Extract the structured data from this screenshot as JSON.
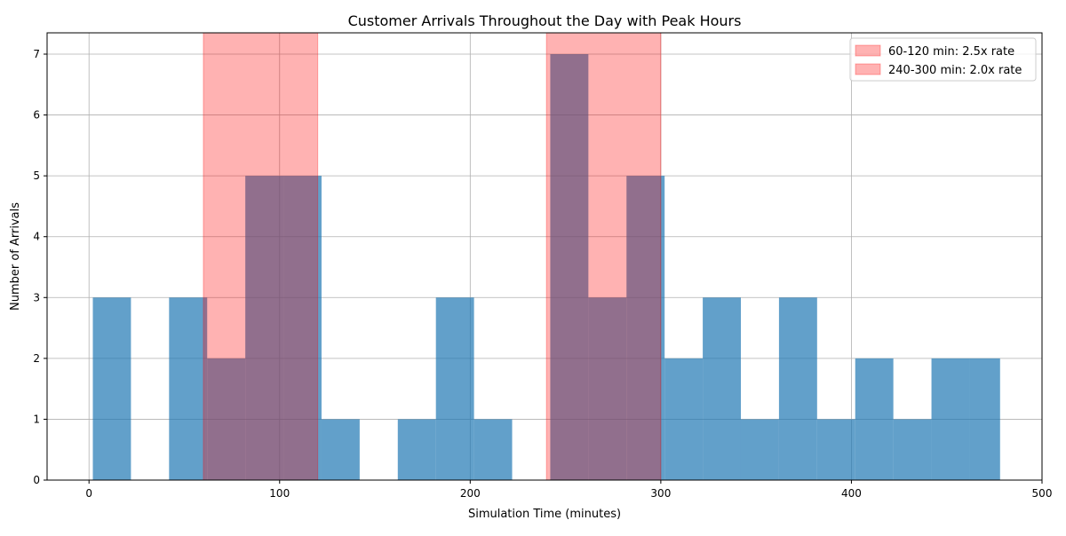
{
  "chart_data": {
    "type": "bar",
    "title": "Customer Arrivals Throughout the Day with Peak Hours",
    "xlabel": "Simulation Time (minutes)",
    "ylabel": "Number of Arrivals",
    "xlim": [
      -22,
      500
    ],
    "ylim": [
      0,
      7.35
    ],
    "xticks": [
      0,
      100,
      200,
      300,
      400,
      500
    ],
    "yticks": [
      0,
      1,
      2,
      3,
      4,
      5,
      6,
      7
    ],
    "grid": true,
    "legend_position": "top-right",
    "bars": [
      {
        "x0": 2,
        "x1": 22,
        "value": 3
      },
      {
        "x0": 22,
        "x1": 42,
        "value": 0
      },
      {
        "x0": 42,
        "x1": 62,
        "value": 3
      },
      {
        "x0": 62,
        "x1": 82,
        "value": 2
      },
      {
        "x0": 82,
        "x1": 102,
        "value": 5
      },
      {
        "x0": 102,
        "x1": 122,
        "value": 5
      },
      {
        "x0": 122,
        "x1": 142,
        "value": 1
      },
      {
        "x0": 142,
        "x1": 162,
        "value": 0
      },
      {
        "x0": 162,
        "x1": 182,
        "value": 1
      },
      {
        "x0": 182,
        "x1": 202,
        "value": 3
      },
      {
        "x0": 202,
        "x1": 222,
        "value": 1
      },
      {
        "x0": 222,
        "x1": 242,
        "value": 0
      },
      {
        "x0": 242,
        "x1": 262,
        "value": 7
      },
      {
        "x0": 262,
        "x1": 282,
        "value": 3
      },
      {
        "x0": 282,
        "x1": 302,
        "value": 5
      },
      {
        "x0": 302,
        "x1": 322,
        "value": 2
      },
      {
        "x0": 322,
        "x1": 342,
        "value": 3
      },
      {
        "x0": 342,
        "x1": 362,
        "value": 1
      },
      {
        "x0": 362,
        "x1": 382,
        "value": 3
      },
      {
        "x0": 382,
        "x1": 402,
        "value": 1
      },
      {
        "x0": 402,
        "x1": 422,
        "value": 2
      },
      {
        "x0": 422,
        "x1": 442,
        "value": 1
      },
      {
        "x0": 442,
        "x1": 462,
        "value": 2
      },
      {
        "x0": 462,
        "x1": 478,
        "value": 2
      }
    ],
    "peak_spans": [
      {
        "start": 60,
        "end": 120,
        "label": "60-120 min: 2.5x rate"
      },
      {
        "start": 240,
        "end": 300,
        "label": "240-300 min: 2.0x rate"
      }
    ],
    "colors": {
      "bar": "#1f77b4",
      "bar_opacity": 0.7,
      "span": "#ff0000",
      "span_opacity": 0.3,
      "grid": "#b0b0b0"
    }
  }
}
